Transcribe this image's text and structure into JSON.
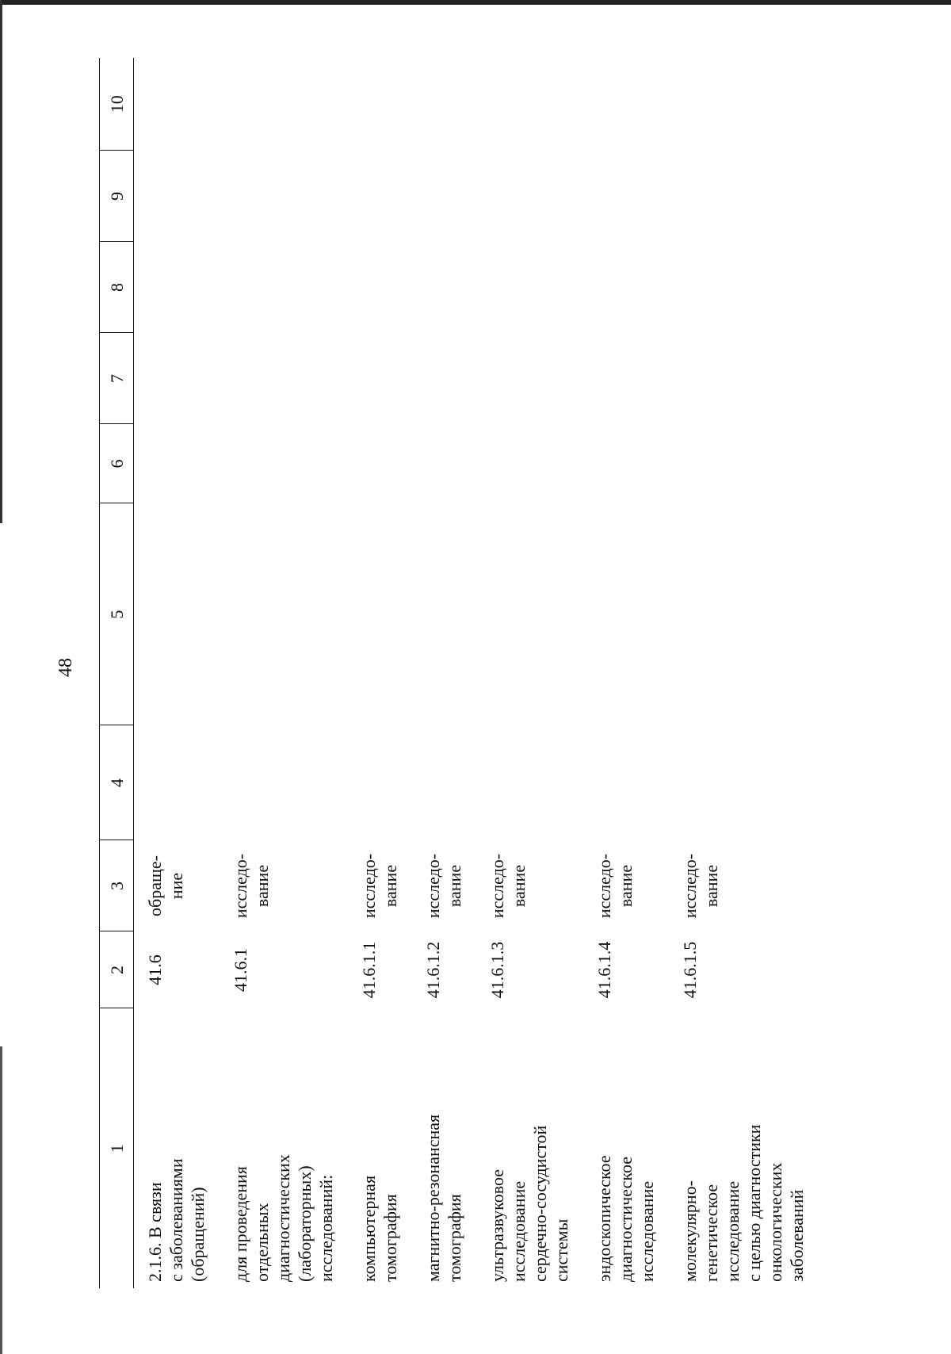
{
  "page_number": "48",
  "table": {
    "headers": [
      "1",
      "2",
      "3",
      "4",
      "5",
      "6",
      "7",
      "8",
      "9",
      "10"
    ],
    "rows": [
      {
        "name": "2.1.6. В связи\nс заболеваниями\n(обращений)",
        "code": "41.6",
        "unit": "обраще-\nние"
      },
      {
        "name": "для проведения\nотдельных\nдиагностических\n(лабораторных)\nисследований:",
        "code": "41.6.1",
        "unit": "исследо-\nвание"
      },
      {
        "name": "компьютерная\nтомография",
        "code": "41.6.1.1",
        "unit": "исследо-\nвание"
      },
      {
        "name": "магнитно-резонансная\nтомография",
        "code": "41.6.1.2",
        "unit": "исследо-\nвание"
      },
      {
        "name": "ультразвуковое\nисследование\nсердечно-сосудистой\nсистемы",
        "code": "41.6.1.3",
        "unit": "исследо-\nвание"
      },
      {
        "name": "эндоскопическое\nдиагностическое\nисследование",
        "code": "41.6.1.4",
        "unit": "исследо-\nвание"
      },
      {
        "name": "молекулярно-\nгенетическое\nисследование\nс целью диагностики\nонкологических\nзаболеваний",
        "code": "41.6.1.5",
        "unit": "исследо-\nвание"
      }
    ]
  }
}
